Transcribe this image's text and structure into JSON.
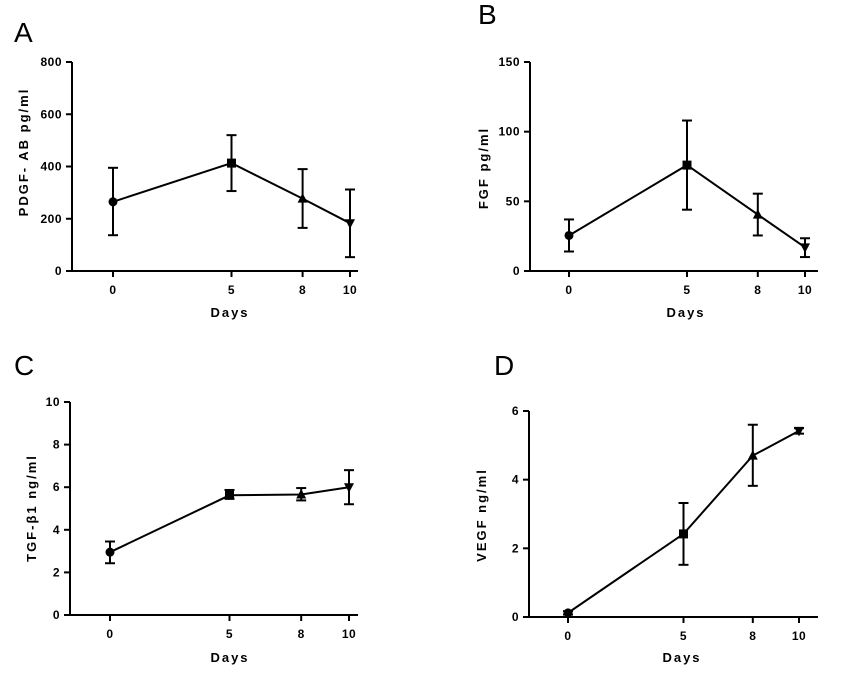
{
  "chart_data": [
    {
      "type": "line",
      "panel_label": "A",
      "xlabel": "Days",
      "ylabel": "PDGF- AB pg/ml",
      "categories": [
        "0",
        "5",
        "8",
        "10"
      ],
      "x": [
        0,
        5,
        8,
        10
      ],
      "values": [
        265,
        413,
        277,
        183
      ],
      "error_upper": [
        395,
        520,
        390,
        312
      ],
      "error_lower": [
        137,
        306,
        165,
        53
      ],
      "markers": [
        "circle",
        "square",
        "triangle-up",
        "triangle-down"
      ],
      "ylim": [
        0,
        800
      ],
      "yticks": [
        0,
        200,
        400,
        600,
        800
      ],
      "ytick_labels": [
        "0",
        "200",
        "400",
        "600",
        "800"
      ]
    },
    {
      "type": "line",
      "panel_label": "B",
      "xlabel": "Days",
      "ylabel": "FGF pg/ml",
      "categories": [
        "0",
        "5",
        "8",
        "10"
      ],
      "x": [
        0,
        5,
        8,
        10
      ],
      "values": [
        25.5,
        76,
        40.5,
        17
      ],
      "error_upper": [
        37,
        108,
        55.5,
        23.5
      ],
      "error_lower": [
        14,
        44,
        25.5,
        10
      ],
      "markers": [
        "circle",
        "square",
        "triangle-up",
        "triangle-down"
      ],
      "ylim": [
        0,
        150
      ],
      "yticks": [
        0,
        50,
        100,
        150
      ],
      "ytick_labels": [
        "0",
        "50",
        "100",
        "150"
      ]
    },
    {
      "type": "line",
      "panel_label": "C",
      "xlabel": "Days",
      "ylabel": "TGF-β1 ng/ml",
      "categories": [
        "0",
        "5",
        "8",
        "10"
      ],
      "x": [
        0,
        5,
        8,
        10
      ],
      "values": [
        2.95,
        5.62,
        5.66,
        6.0
      ],
      "error_upper": [
        3.45,
        5.87,
        5.96,
        6.8
      ],
      "error_lower": [
        2.43,
        5.46,
        5.38,
        5.2
      ],
      "markers": [
        "circle",
        "square",
        "triangle-up",
        "triangle-down"
      ],
      "ylim": [
        0,
        10
      ],
      "yticks": [
        0,
        2,
        4,
        6,
        8,
        10
      ],
      "ytick_labels": [
        "0",
        "2",
        "4",
        "6",
        "8",
        "10"
      ]
    },
    {
      "type": "line",
      "panel_label": "D",
      "xlabel": "Days",
      "ylabel": "VEGF ng/ml",
      "categories": [
        "0",
        "5",
        "8",
        "10"
      ],
      "x": [
        0,
        5,
        8,
        10
      ],
      "values": [
        0.12,
        2.42,
        4.7,
        5.42
      ],
      "error_upper": [
        0.17,
        3.32,
        5.6,
        5.5
      ],
      "error_lower": [
        0.07,
        1.52,
        3.82,
        5.34
      ],
      "markers": [
        "circle",
        "square",
        "triangle-up",
        "triangle-down"
      ],
      "ylim": [
        0,
        6
      ],
      "yticks": [
        0,
        2,
        4,
        6
      ],
      "ytick_labels": [
        "0",
        "2",
        "4",
        "6"
      ]
    }
  ]
}
